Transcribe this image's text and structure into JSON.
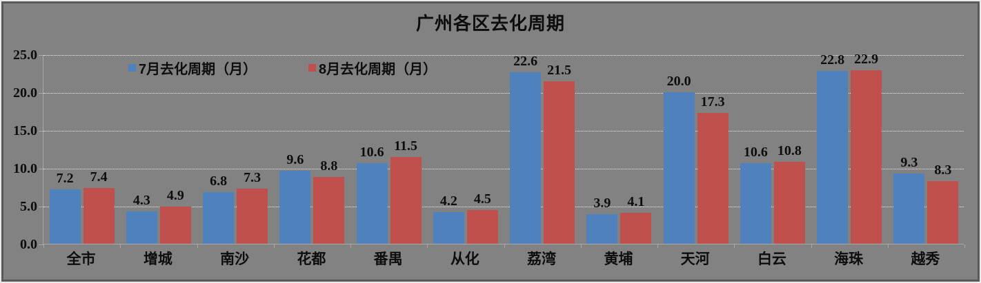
{
  "colors": {
    "background": "#828282",
    "gridline": "#efefef",
    "axis_line": "#a8a8a8",
    "text": "#0d0d0d",
    "frame_outer": "#eaeaea",
    "frame_inner": "#58595b",
    "series_july": "#4F81BD",
    "series_august": "#C0504D"
  },
  "chart_data": {
    "type": "bar",
    "title": "广州各区去化周期",
    "categories": [
      "全市",
      "增城",
      "南沙",
      "花都",
      "番禺",
      "从化",
      "荔湾",
      "黄埔",
      "天河",
      "白云",
      "海珠",
      "越秀"
    ],
    "series": [
      {
        "name": "7月去化周期（月）",
        "color": "#4F81BD",
        "values": [
          7.2,
          4.3,
          6.8,
          9.6,
          10.6,
          4.2,
          22.6,
          3.9,
          20.0,
          10.6,
          22.8,
          9.3
        ]
      },
      {
        "name": "8月去化周期（月）",
        "color": "#C0504D",
        "values": [
          7.4,
          4.9,
          7.3,
          8.8,
          11.5,
          4.5,
          21.5,
          4.1,
          17.3,
          10.8,
          22.9,
          8.3
        ]
      }
    ],
    "xlabel": "",
    "ylabel": "",
    "ylim": [
      0,
      25
    ],
    "ytick_step": 5,
    "ytick_labels": [
      "0.0",
      "5.0",
      "10.0",
      "15.0",
      "20.0",
      "25.0"
    ],
    "grid": "horizontal-dotted",
    "legend_position": "inside-top-left",
    "data_labels": "one-decimal-above-bars"
  }
}
